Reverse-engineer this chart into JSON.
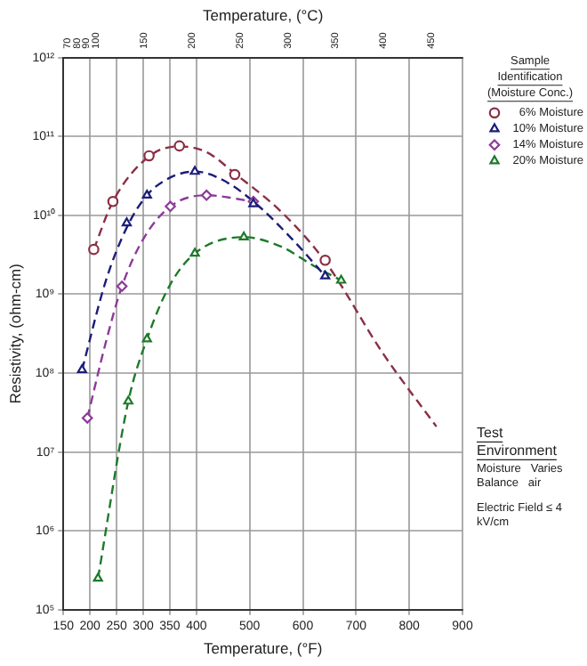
{
  "chart_data": {
    "type": "scatter",
    "xlabel": "Temperature, (°F)",
    "x2label": "Temperature, (°C)",
    "ylabel": "Resistivity, (ohm-cm)",
    "legend_title": "Sample Identification (Moisture Conc.)",
    "annotations": [
      "Test Environment",
      "Moisture   Varies",
      "Balance   air",
      "Electric Field ≤ 4 kV/cm"
    ],
    "xlim": [
      150,
      900
    ],
    "xticks": [
      150,
      200,
      250,
      300,
      350,
      400,
      500,
      600,
      700,
      800,
      900
    ],
    "x2lim": [
      65.6,
      482.2
    ],
    "x2ticks": [
      70,
      80,
      90,
      100,
      150,
      200,
      250,
      300,
      350,
      400,
      450
    ],
    "ylim": [
      100000,
      1000000000000
    ],
    "yticks": [
      {
        "value": 100000,
        "label": "10⁵"
      },
      {
        "value": 1000000,
        "label": "10⁶"
      },
      {
        "value": 10000000,
        "label": "10⁷"
      },
      {
        "value": 100000000,
        "label": "10⁸"
      },
      {
        "value": 1000000000,
        "label": "10⁹"
      },
      {
        "value": 10000000000,
        "label": "10¹⁰"
      },
      {
        "value": 100000000000,
        "label": "10¹¹"
      },
      {
        "value": 1000000000000,
        "label": "10¹²"
      }
    ],
    "log": "y",
    "grid": true,
    "legend": "right",
    "series": [
      {
        "name": "6% Moisture",
        "marker": "circle",
        "color": "#8b2f45",
        "x": [
          207,
          243,
          311,
          368,
          472,
          642
        ],
        "values": [
          3700000000,
          15000000000,
          57000000000,
          76000000000,
          33000000000,
          2700000000
        ]
      },
      {
        "name": "10% Moisture",
        "marker": "triangle",
        "color": "#1c1c7a",
        "x": [
          185,
          269,
          307,
          397,
          507,
          642
        ],
        "values": [
          110000000,
          8000000000,
          18000000000,
          36000000000,
          14000000000,
          1700000000
        ]
      },
      {
        "name": "14% Moisture",
        "marker": "diamond",
        "color": "#8e3a9a",
        "x": [
          195,
          260,
          351,
          419,
          507
        ],
        "values": [
          27000000,
          1260000000,
          13000000000,
          18000000000,
          15000000000
        ]
      },
      {
        "name": "20% Moisture",
        "marker": "triangle",
        "color": "#1d7a2a",
        "x": [
          215,
          272,
          307,
          397,
          489,
          672
        ],
        "values": [
          250000,
          44000000,
          270000000,
          3300000000,
          5300000000,
          1500000000
        ]
      },
      {
        "type": "line",
        "marker": "none",
        "line_style": "dashed",
        "color": "#8b2f45",
        "x": [
          207,
          243,
          311,
          368,
          420,
          472,
          560,
          642,
          750,
          851
        ],
        "values": [
          3700000000,
          15000000000,
          56000000000,
          75000000000,
          63000000000,
          34000000000,
          11000000000,
          2600000000,
          180000000,
          21000000
        ]
      },
      {
        "type": "line",
        "marker": "none",
        "line_style": "dashed",
        "color": "#1c1c7a",
        "x": [
          185,
          230,
          269,
          307,
          350,
          397,
          450,
          507,
          580,
          642
        ],
        "values": [
          110000000,
          1500000000,
          7000000000,
          18000000000,
          30000000000,
          36000000000,
          28000000000,
          15000000000,
          5000000000,
          1700000000
        ]
      },
      {
        "type": "line",
        "marker": "none",
        "line_style": "dashed",
        "color": "#8e3a9a",
        "x": [
          195,
          230,
          260,
          300,
          351,
          419,
          507
        ],
        "values": [
          27000000,
          250000000,
          1260000000,
          5000000000,
          13000000000,
          18000000000,
          15000000000
        ]
      },
      {
        "type": "line",
        "marker": "none",
        "line_style": "dashed",
        "color": "#1d7a2a",
        "x": [
          215,
          272,
          307,
          350,
          397,
          489,
          560,
          620,
          672
        ],
        "values": [
          250000,
          44000000,
          270000000,
          1300000000,
          3300000000,
          5300000000,
          4000000000,
          2300000000,
          1500000000
        ]
      }
    ]
  }
}
